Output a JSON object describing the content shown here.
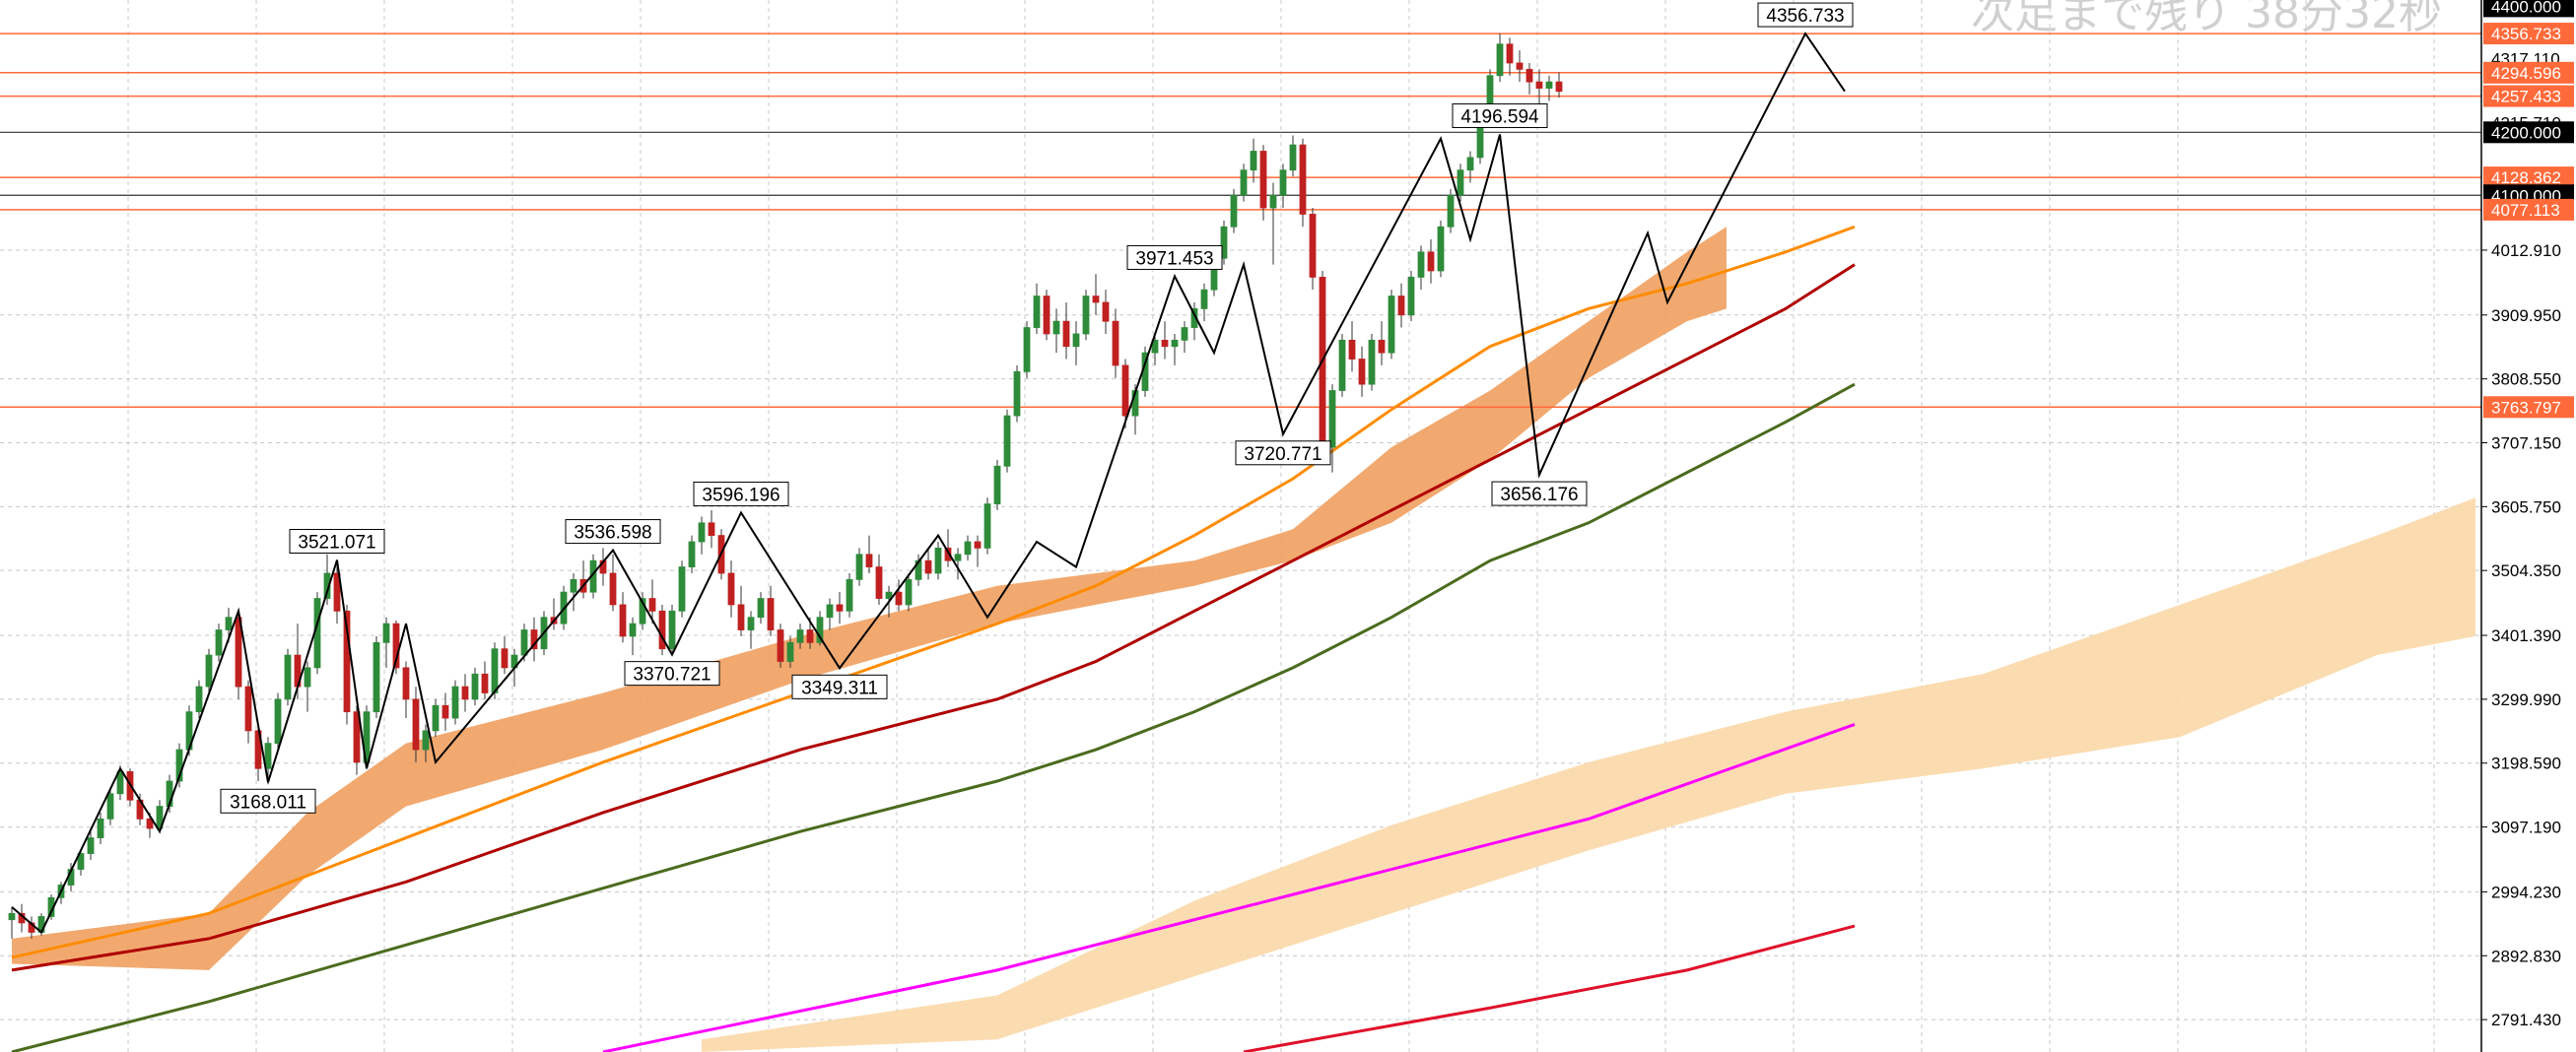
{
  "countdown_text": "次足まで残り 38分32秒",
  "colors": {
    "background": "#ffffff",
    "grid": "#c8c8c8",
    "bull_candle": "#2e8b3a",
    "bear_candle": "#c02020",
    "zigzag": "#000000",
    "ma_short": "#ff8c00",
    "ma_mid": "#b00000",
    "ma_long": "#4b6b1e",
    "bollinger": "#5fb873",
    "cloud_near": "#f0a060",
    "cloud_far": "#fbd8a8",
    "magenta_line": "#ff00ff",
    "red_line": "#e0102a",
    "horizontal_level": "#ff6a3a",
    "current_price_box": "#000000"
  },
  "chart_data": {
    "type": "candlestick",
    "title": "",
    "xlabel": "",
    "ylabel": "",
    "ylim": [
      2740,
      4410
    ],
    "y_ticks": [
      "4012.910",
      "3909.950",
      "3808.550",
      "3707.150",
      "3605.750",
      "3504.350",
      "3401.390",
      "3299.990",
      "3198.590",
      "3097.190",
      "2994.230",
      "2892.830",
      "2791.430"
    ],
    "y_tick_values": [
      4012.91,
      3909.95,
      3808.55,
      3707.15,
      3605.75,
      3504.35,
      3401.39,
      3299.99,
      3198.59,
      3097.19,
      2994.23,
      2892.83,
      2791.43
    ],
    "price_tags": [
      {
        "text": "4400.000",
        "value": 4400.0,
        "style": "black"
      },
      {
        "text": "4356.733",
        "value": 4356.733,
        "style": "orange"
      },
      {
        "text": "4317.110",
        "value": 4317.11,
        "style": "plain"
      },
      {
        "text": "4294.596",
        "value": 4294.596,
        "style": "orange"
      },
      {
        "text": "4257.433",
        "value": 4257.433,
        "style": "orange"
      },
      {
        "text": "4215.710",
        "value": 4215.71,
        "style": "plain"
      },
      {
        "text": "4200.000",
        "value": 4200.0,
        "style": "black"
      },
      {
        "text": "4128.362",
        "value": 4128.362,
        "style": "orange"
      },
      {
        "text": "4100.000",
        "value": 4100.0,
        "style": "black"
      },
      {
        "text": "4077.113",
        "value": 4077.113,
        "style": "orange"
      },
      {
        "text": "3763.797",
        "value": 3763.797,
        "style": "orange"
      }
    ],
    "horizontal_levels": [
      4356.733,
      4294.596,
      4257.433,
      4128.362,
      4077.113,
      3763.797
    ],
    "black_levels": [
      4200.0,
      4100.0
    ],
    "zigzag_labels": [
      {
        "text": "3521.071",
        "bar": 33,
        "value": 3521.071,
        "pos": "above"
      },
      {
        "text": "3168.011",
        "bar": 26,
        "value": 3168.011,
        "pos": "below"
      },
      {
        "text": "3536.598",
        "bar": 61,
        "value": 3536.598,
        "pos": "above"
      },
      {
        "text": "3370.721",
        "bar": 67,
        "value": 3370.721,
        "pos": "below"
      },
      {
        "text": "3596.196",
        "bar": 74,
        "value": 3596.196,
        "pos": "above"
      },
      {
        "text": "3349.311",
        "bar": 84,
        "value": 3349.311,
        "pos": "below"
      },
      {
        "text": "3971.453",
        "bar": 118,
        "value": 3971.453,
        "pos": "above"
      },
      {
        "text": "3720.771",
        "bar": 129,
        "value": 3720.771,
        "pos": "below"
      },
      {
        "text": "4196.594",
        "bar": 151,
        "value": 4196.594,
        "pos": "above"
      },
      {
        "text": "3656.176",
        "bar": 155,
        "value": 3656.176,
        "pos": "below"
      },
      {
        "text": "4356.733",
        "bar": 182,
        "value": 4356.733,
        "pos": "above"
      }
    ],
    "zigzag_points": [
      {
        "bar": 0,
        "value": 2970
      },
      {
        "bar": 3,
        "value": 2930
      },
      {
        "bar": 11,
        "value": 3190
      },
      {
        "bar": 15,
        "value": 3090
      },
      {
        "bar": 23,
        "value": 3440
      },
      {
        "bar": 26,
        "value": 3168.011
      },
      {
        "bar": 33,
        "value": 3521.071
      },
      {
        "bar": 36,
        "value": 3190
      },
      {
        "bar": 40,
        "value": 3420
      },
      {
        "bar": 43,
        "value": 3200
      },
      {
        "bar": 61,
        "value": 3536.598
      },
      {
        "bar": 67,
        "value": 3370.721
      },
      {
        "bar": 74,
        "value": 3596.196
      },
      {
        "bar": 84,
        "value": 3349.311
      },
      {
        "bar": 94,
        "value": 3560
      },
      {
        "bar": 99,
        "value": 3430
      },
      {
        "bar": 104,
        "value": 3550
      },
      {
        "bar": 108,
        "value": 3510
      },
      {
        "bar": 118,
        "value": 3971.453
      },
      {
        "bar": 122,
        "value": 3850
      },
      {
        "bar": 125,
        "value": 3990
      },
      {
        "bar": 129,
        "value": 3720.771
      },
      {
        "bar": 145,
        "value": 4190
      },
      {
        "bar": 148,
        "value": 4030
      },
      {
        "bar": 151,
        "value": 4196.594
      },
      {
        "bar": 155,
        "value": 3656.176
      },
      {
        "bar": 166,
        "value": 4040
      },
      {
        "bar": 168,
        "value": 3930
      },
      {
        "bar": 182,
        "value": 4356.733
      },
      {
        "bar": 186,
        "value": 4265
      }
    ],
    "candles": [
      [
        2950,
        2970,
        2920,
        2960
      ],
      [
        2960,
        2975,
        2930,
        2945
      ],
      [
        2945,
        2955,
        2920,
        2930
      ],
      [
        2930,
        2960,
        2925,
        2955
      ],
      [
        2955,
        2990,
        2950,
        2985
      ],
      [
        2985,
        3010,
        2975,
        3005
      ],
      [
        3005,
        3040,
        2995,
        3030
      ],
      [
        3030,
        3060,
        3020,
        3055
      ],
      [
        3055,
        3090,
        3045,
        3080
      ],
      [
        3080,
        3120,
        3070,
        3110
      ],
      [
        3110,
        3160,
        3100,
        3150
      ],
      [
        3150,
        3195,
        3140,
        3185
      ],
      [
        3185,
        3190,
        3130,
        3140
      ],
      [
        3140,
        3150,
        3100,
        3110
      ],
      [
        3110,
        3120,
        3080,
        3095
      ],
      [
        3095,
        3140,
        3090,
        3130
      ],
      [
        3130,
        3180,
        3120,
        3170
      ],
      [
        3170,
        3230,
        3160,
        3220
      ],
      [
        3220,
        3290,
        3210,
        3280
      ],
      [
        3280,
        3330,
        3270,
        3320
      ],
      [
        3320,
        3380,
        3310,
        3370
      ],
      [
        3370,
        3420,
        3360,
        3410
      ],
      [
        3410,
        3445,
        3390,
        3430
      ],
      [
        3430,
        3440,
        3300,
        3320
      ],
      [
        3320,
        3330,
        3230,
        3250
      ],
      [
        3250,
        3260,
        3170,
        3190
      ],
      [
        3190,
        3240,
        3165,
        3230
      ],
      [
        3230,
        3310,
        3220,
        3300
      ],
      [
        3300,
        3380,
        3290,
        3370
      ],
      [
        3370,
        3420,
        3300,
        3320
      ],
      [
        3320,
        3360,
        3280,
        3350
      ],
      [
        3350,
        3470,
        3340,
        3460
      ],
      [
        3460,
        3530,
        3450,
        3500
      ],
      [
        3500,
        3520,
        3420,
        3440
      ],
      [
        3440,
        3450,
        3260,
        3280
      ],
      [
        3280,
        3290,
        3180,
        3200
      ],
      [
        3200,
        3290,
        3190,
        3280
      ],
      [
        3280,
        3400,
        3270,
        3390
      ],
      [
        3390,
        3430,
        3350,
        3420
      ],
      [
        3420,
        3425,
        3340,
        3350
      ],
      [
        3350,
        3360,
        3270,
        3300
      ],
      [
        3300,
        3320,
        3200,
        3220
      ],
      [
        3220,
        3260,
        3200,
        3250
      ],
      [
        3250,
        3300,
        3240,
        3290
      ],
      [
        3290,
        3310,
        3250,
        3270
      ],
      [
        3270,
        3330,
        3260,
        3320
      ],
      [
        3320,
        3340,
        3280,
        3300
      ],
      [
        3300,
        3350,
        3290,
        3340
      ],
      [
        3340,
        3360,
        3300,
        3310
      ],
      [
        3310,
        3390,
        3300,
        3380
      ],
      [
        3380,
        3400,
        3340,
        3350
      ],
      [
        3350,
        3380,
        3320,
        3370
      ],
      [
        3370,
        3420,
        3360,
        3410
      ],
      [
        3410,
        3430,
        3360,
        3380
      ],
      [
        3380,
        3440,
        3370,
        3430
      ],
      [
        3430,
        3460,
        3410,
        3420
      ],
      [
        3420,
        3480,
        3410,
        3470
      ],
      [
        3470,
        3500,
        3440,
        3490
      ],
      [
        3490,
        3520,
        3460,
        3470
      ],
      [
        3470,
        3530,
        3460,
        3520
      ],
      [
        3520,
        3540,
        3480,
        3500
      ],
      [
        3500,
        3530,
        3440,
        3450
      ],
      [
        3450,
        3470,
        3390,
        3400
      ],
      [
        3400,
        3430,
        3370,
        3420
      ],
      [
        3420,
        3470,
        3410,
        3460
      ],
      [
        3460,
        3490,
        3420,
        3440
      ],
      [
        3440,
        3450,
        3370,
        3380
      ],
      [
        3380,
        3450,
        3375,
        3440
      ],
      [
        3440,
        3520,
        3430,
        3510
      ],
      [
        3510,
        3560,
        3500,
        3550
      ],
      [
        3550,
        3590,
        3530,
        3580
      ],
      [
        3580,
        3600,
        3540,
        3560
      ],
      [
        3560,
        3570,
        3490,
        3500
      ],
      [
        3500,
        3520,
        3430,
        3450
      ],
      [
        3450,
        3480,
        3400,
        3410
      ],
      [
        3410,
        3440,
        3380,
        3430
      ],
      [
        3430,
        3470,
        3420,
        3460
      ],
      [
        3460,
        3480,
        3400,
        3410
      ],
      [
        3410,
        3420,
        3350,
        3360
      ],
      [
        3360,
        3400,
        3350,
        3390
      ],
      [
        3390,
        3420,
        3380,
        3410
      ],
      [
        3410,
        3430,
        3380,
        3390
      ],
      [
        3390,
        3440,
        3385,
        3430
      ],
      [
        3430,
        3460,
        3410,
        3450
      ],
      [
        3450,
        3470,
        3420,
        3440
      ],
      [
        3440,
        3500,
        3430,
        3490
      ],
      [
        3490,
        3540,
        3480,
        3530
      ],
      [
        3530,
        3560,
        3500,
        3510
      ],
      [
        3510,
        3530,
        3450,
        3460
      ],
      [
        3460,
        3480,
        3430,
        3470
      ],
      [
        3470,
        3490,
        3440,
        3450
      ],
      [
        3450,
        3500,
        3440,
        3490
      ],
      [
        3490,
        3530,
        3480,
        3520
      ],
      [
        3520,
        3540,
        3490,
        3500
      ],
      [
        3500,
        3550,
        3490,
        3540
      ],
      [
        3540,
        3570,
        3510,
        3520
      ],
      [
        3520,
        3540,
        3490,
        3530
      ],
      [
        3530,
        3560,
        3520,
        3550
      ],
      [
        3550,
        3560,
        3510,
        3540
      ],
      [
        3540,
        3620,
        3530,
        3610
      ],
      [
        3610,
        3680,
        3600,
        3670
      ],
      [
        3670,
        3760,
        3660,
        3750
      ],
      [
        3750,
        3830,
        3740,
        3820
      ],
      [
        3820,
        3900,
        3810,
        3890
      ],
      [
        3890,
        3960,
        3880,
        3940
      ],
      [
        3940,
        3950,
        3870,
        3880
      ],
      [
        3880,
        3920,
        3850,
        3900
      ],
      [
        3900,
        3930,
        3840,
        3860
      ],
      [
        3860,
        3900,
        3830,
        3880
      ],
      [
        3880,
        3950,
        3870,
        3940
      ],
      [
        3940,
        3975,
        3910,
        3930
      ],
      [
        3930,
        3950,
        3880,
        3900
      ],
      [
        3900,
        3920,
        3810,
        3830
      ],
      [
        3830,
        3840,
        3730,
        3750
      ],
      [
        3750,
        3800,
        3720,
        3790
      ],
      [
        3790,
        3860,
        3780,
        3850
      ],
      [
        3850,
        3880,
        3830,
        3870
      ],
      [
        3870,
        3900,
        3840,
        3860
      ],
      [
        3860,
        3880,
        3830,
        3870
      ],
      [
        3870,
        3900,
        3850,
        3890
      ],
      [
        3890,
        3930,
        3870,
        3920
      ],
      [
        3920,
        3960,
        3900,
        3950
      ],
      [
        3950,
        4010,
        3940,
        4000
      ],
      [
        4000,
        4060,
        3990,
        4050
      ],
      [
        4050,
        4110,
        4040,
        4100
      ],
      [
        4100,
        4150,
        4090,
        4140
      ],
      [
        4140,
        4190,
        4120,
        4170
      ],
      [
        4170,
        4180,
        4060,
        4080
      ],
      [
        4080,
        4120,
        3990,
        4100
      ],
      [
        4100,
        4150,
        4080,
        4140
      ],
      [
        4140,
        4195,
        4130,
        4180
      ],
      [
        4180,
        4190,
        4050,
        4070
      ],
      [
        4070,
        4080,
        3950,
        3970
      ],
      [
        3970,
        3980,
        3680,
        3700
      ],
      [
        3700,
        3800,
        3660,
        3790
      ],
      [
        3790,
        3880,
        3780,
        3870
      ],
      [
        3870,
        3900,
        3820,
        3840
      ],
      [
        3840,
        3860,
        3780,
        3800
      ],
      [
        3800,
        3880,
        3790,
        3870
      ],
      [
        3870,
        3900,
        3830,
        3850
      ],
      [
        3850,
        3950,
        3840,
        3940
      ],
      [
        3940,
        3960,
        3890,
        3910
      ],
      [
        3910,
        3980,
        3900,
        3970
      ],
      [
        3970,
        4020,
        3950,
        4010
      ],
      [
        4010,
        4030,
        3960,
        3980
      ],
      [
        3980,
        4060,
        3970,
        4050
      ],
      [
        4050,
        4110,
        4040,
        4100
      ],
      [
        4100,
        4150,
        4090,
        4140
      ],
      [
        4140,
        4170,
        4120,
        4160
      ],
      [
        4160,
        4230,
        4150,
        4220
      ],
      [
        4220,
        4300,
        4210,
        4290
      ],
      [
        4290,
        4357,
        4280,
        4340
      ],
      [
        4340,
        4350,
        4290,
        4310
      ],
      [
        4310,
        4330,
        4280,
        4300
      ],
      [
        4300,
        4310,
        4260,
        4280
      ],
      [
        4280,
        4300,
        4240,
        4270
      ],
      [
        4270,
        4290,
        4250,
        4280
      ],
      [
        4280,
        4295,
        4255,
        4265
      ]
    ],
    "ma_short": [
      [
        0,
        2890
      ],
      [
        20,
        2960
      ],
      [
        40,
        3080
      ],
      [
        60,
        3200
      ],
      [
        80,
        3310
      ],
      [
        100,
        3420
      ],
      [
        110,
        3480
      ],
      [
        120,
        3560
      ],
      [
        130,
        3650
      ],
      [
        140,
        3760
      ],
      [
        150,
        3860
      ],
      [
        160,
        3920
      ],
      [
        170,
        3960
      ],
      [
        180,
        4010
      ],
      [
        187,
        4050
      ]
    ],
    "ma_mid": [
      [
        0,
        2870
      ],
      [
        20,
        2920
      ],
      [
        40,
        3010
      ],
      [
        60,
        3120
      ],
      [
        80,
        3220
      ],
      [
        100,
        3300
      ],
      [
        110,
        3360
      ],
      [
        120,
        3440
      ],
      [
        130,
        3520
      ],
      [
        140,
        3600
      ],
      [
        150,
        3680
      ],
      [
        160,
        3760
      ],
      [
        170,
        3840
      ],
      [
        180,
        3920
      ],
      [
        187,
        3990
      ]
    ],
    "ma_long": [
      [
        0,
        2740
      ],
      [
        20,
        2820
      ],
      [
        40,
        2910
      ],
      [
        60,
        3000
      ],
      [
        80,
        3090
      ],
      [
        100,
        3170
      ],
      [
        110,
        3220
      ],
      [
        120,
        3280
      ],
      [
        130,
        3350
      ],
      [
        140,
        3430
      ],
      [
        150,
        3520
      ],
      [
        160,
        3580
      ],
      [
        170,
        3660
      ],
      [
        180,
        3740
      ],
      [
        187,
        3800
      ]
    ],
    "magenta_line": [
      [
        60,
        2740
      ],
      [
        100,
        2870
      ],
      [
        130,
        2990
      ],
      [
        160,
        3110
      ],
      [
        187,
        3260
      ]
    ],
    "red_line": [
      [
        125,
        2740
      ],
      [
        150,
        2810
      ],
      [
        170,
        2870
      ],
      [
        187,
        2940
      ]
    ]
  }
}
